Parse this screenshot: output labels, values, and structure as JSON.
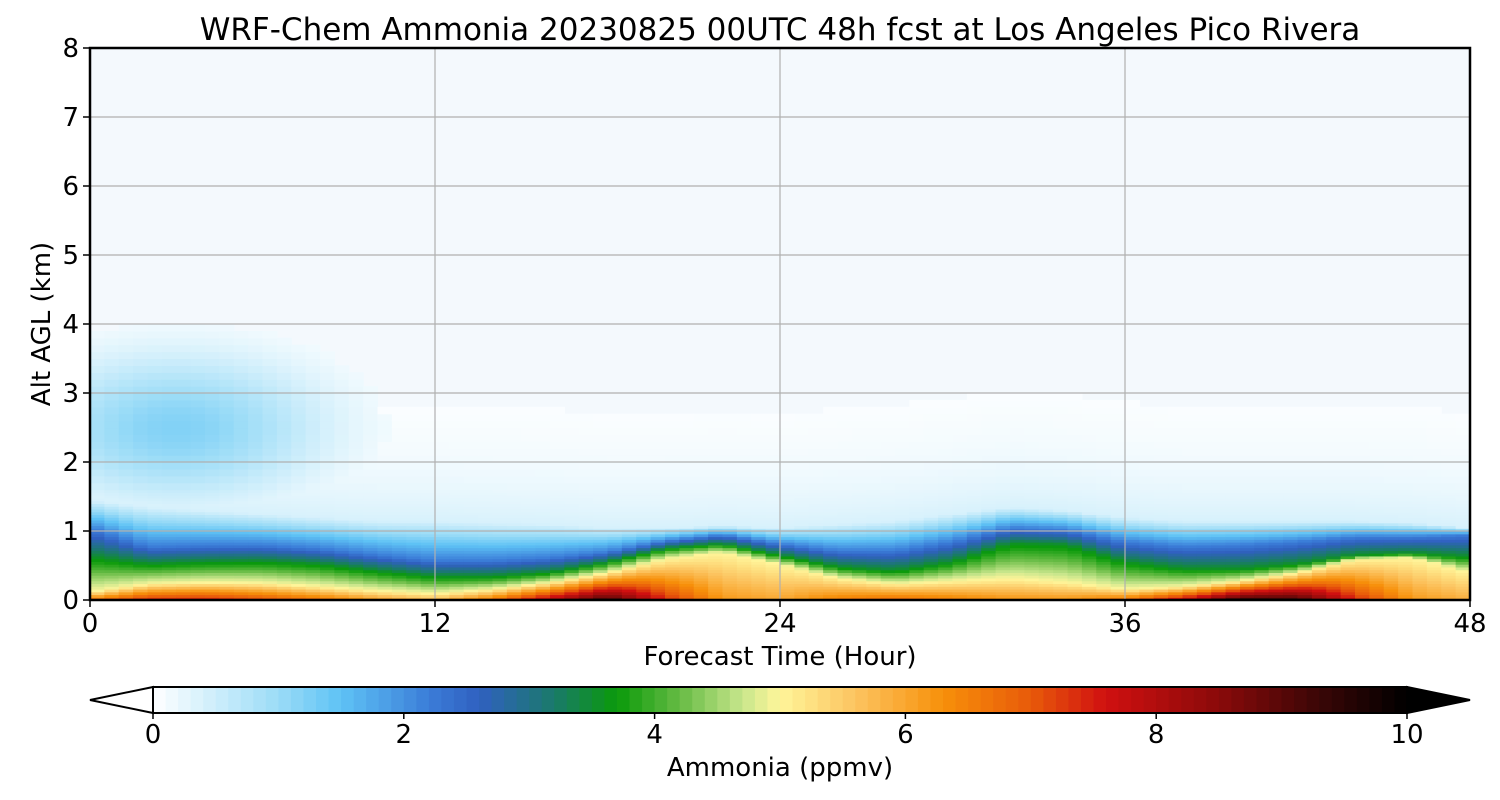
{
  "chart_data": {
    "type": "heatmap",
    "title": "WRF-Chem Ammonia  20230825 00UTC 48h fcst at Los Angeles Pico Rivera",
    "xlabel": "Forecast Time (Hour)",
    "ylabel": "Alt AGL (km)",
    "xlim": [
      0,
      48
    ],
    "ylim": [
      0,
      8
    ],
    "x_ticks": [
      "0",
      "12",
      "24",
      "36",
      "48"
    ],
    "y_ticks": [
      "0",
      "1",
      "2",
      "3",
      "4",
      "5",
      "6",
      "7",
      "8"
    ],
    "grid": true,
    "colorbar": {
      "label": "Ammonia  (ppmv)",
      "range": [
        0,
        10
      ],
      "ticks": [
        "0",
        "2",
        "4",
        "6",
        "8",
        "10"
      ],
      "extend": "both",
      "stops": [
        {
          "v": 0.0,
          "c": "#ffffff"
        },
        {
          "v": 1.0,
          "c": "#9bdcf7"
        },
        {
          "v": 1.5,
          "c": "#5ec2f5"
        },
        {
          "v": 2.2,
          "c": "#3b7dd8"
        },
        {
          "v": 2.6,
          "c": "#3060c0"
        },
        {
          "v": 3.2,
          "c": "#1a7a6a"
        },
        {
          "v": 3.7,
          "c": "#0a9a0a"
        },
        {
          "v": 4.2,
          "c": "#66bb44"
        },
        {
          "v": 4.7,
          "c": "#c8e68c"
        },
        {
          "v": 5.0,
          "c": "#fff59a"
        },
        {
          "v": 5.6,
          "c": "#fcc460"
        },
        {
          "v": 6.3,
          "c": "#f7900a"
        },
        {
          "v": 7.0,
          "c": "#e85a0a"
        },
        {
          "v": 7.6,
          "c": "#d01010"
        },
        {
          "v": 8.5,
          "c": "#8a0a0a"
        },
        {
          "v": 9.3,
          "c": "#3a0606"
        },
        {
          "v": 10.0,
          "c": "#000000"
        }
      ]
    },
    "x": [
      0,
      2,
      4,
      6,
      8,
      10,
      12,
      14,
      16,
      18,
      20,
      22,
      24,
      26,
      28,
      30,
      32,
      34,
      36,
      38,
      40,
      42,
      44,
      46,
      48
    ],
    "altitude_profile_params": {
      "surface_value": [
        6.8,
        7.5,
        7.6,
        7.2,
        6.8,
        6.2,
        5.8,
        6.8,
        8.2,
        9.4,
        7.5,
        6.2,
        6.0,
        6.6,
        6.9,
        6.6,
        6.3,
        6.3,
        6.8,
        8.0,
        9.6,
        9.4,
        7.5,
        6.2,
        5.9
      ],
      "top_yellow_km": [
        0.12,
        0.24,
        0.26,
        0.25,
        0.2,
        0.14,
        0.1,
        0.16,
        0.26,
        0.4,
        0.6,
        0.7,
        0.52,
        0.32,
        0.24,
        0.28,
        0.32,
        0.26,
        0.16,
        0.2,
        0.28,
        0.4,
        0.6,
        0.62,
        0.4
      ],
      "top_green_km": [
        0.62,
        0.52,
        0.55,
        0.56,
        0.52,
        0.42,
        0.34,
        0.34,
        0.4,
        0.55,
        0.75,
        0.82,
        0.65,
        0.48,
        0.42,
        0.55,
        0.82,
        0.8,
        0.55,
        0.45,
        0.45,
        0.52,
        0.65,
        0.68,
        0.62
      ],
      "top_blue_km": [
        1.05,
        0.78,
        0.8,
        0.8,
        0.75,
        0.66,
        0.58,
        0.58,
        0.62,
        0.7,
        0.86,
        0.95,
        0.82,
        0.72,
        0.72,
        0.85,
        1.05,
        1.02,
        0.85,
        0.78,
        0.8,
        0.85,
        0.92,
        0.92,
        0.95
      ],
      "top_light_km": [
        1.45,
        1.35,
        1.3,
        1.25,
        1.2,
        1.15,
        1.15,
        1.12,
        1.1,
        1.05,
        1.05,
        1.08,
        1.05,
        1.1,
        1.15,
        1.25,
        1.35,
        1.3,
        1.2,
        1.15,
        1.15,
        1.15,
        1.15,
        1.12,
        1.05
      ],
      "upper_plume": {
        "x_center": 3.0,
        "x_halfwidth": 5.8,
        "y_center": 2.5,
        "y_halfwidth": 1.2,
        "peak_value": 1.2
      }
    }
  }
}
